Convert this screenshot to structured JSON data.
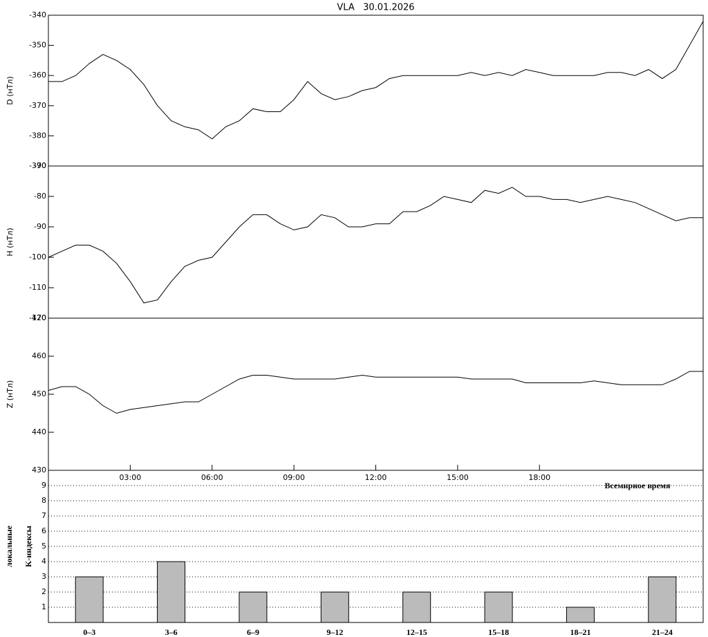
{
  "chart_data": [
    {
      "type": "line",
      "title": "VLA   30.01.2026",
      "ylabel": "D (нТл)",
      "color": "#000000",
      "x": [
        0,
        0.5,
        1,
        1.5,
        2,
        2.5,
        3,
        3.5,
        4,
        4.5,
        5,
        5.5,
        6,
        6.5,
        7,
        7.5,
        8,
        8.5,
        9,
        9.5,
        10,
        10.5,
        11,
        11.5,
        12,
        12.5,
        13,
        13.5,
        14,
        14.5,
        15,
        15.5,
        16,
        16.5,
        17,
        17.5,
        18,
        18.5,
        19,
        19.5,
        20,
        20.5,
        21,
        21.5,
        22,
        22.5,
        23,
        23.5,
        24
      ],
      "values": [
        -362,
        -362,
        -360,
        -356,
        -353,
        -355,
        -358,
        -363,
        -370,
        -375,
        -377,
        -378,
        -381,
        -377,
        -375,
        -371,
        -372,
        -372,
        -368,
        -362,
        -366,
        -368,
        -367,
        -365,
        -364,
        -361,
        -360,
        -360,
        -360,
        -360,
        -360,
        -359,
        -360,
        -359,
        -360,
        -358,
        -359,
        -360,
        -360,
        -360,
        -360,
        -359,
        -359,
        -360,
        -358,
        -361,
        -358,
        -350,
        -342
      ],
      "xlim": [
        0,
        24
      ],
      "ylim": [
        -390,
        -340
      ],
      "yticks": [
        -390,
        -380,
        -370,
        -360,
        -350,
        -340
      ]
    },
    {
      "type": "line",
      "ylabel": "H (нТл)",
      "color": "#000000",
      "x": [
        0,
        0.5,
        1,
        1.5,
        2,
        2.5,
        3,
        3.5,
        4,
        4.5,
        5,
        5.5,
        6,
        6.5,
        7,
        7.5,
        8,
        8.5,
        9,
        9.5,
        10,
        10.5,
        11,
        11.5,
        12,
        12.5,
        13,
        13.5,
        14,
        14.5,
        15,
        15.5,
        16,
        16.5,
        17,
        17.5,
        18,
        18.5,
        19,
        19.5,
        20,
        20.5,
        21,
        21.5,
        22,
        22.5,
        23,
        23.5,
        24
      ],
      "values": [
        -100,
        -98,
        -96,
        -96,
        -98,
        -102,
        -108,
        -115,
        -114,
        -108,
        -103,
        -101,
        -100,
        -95,
        -90,
        -86,
        -86,
        -89,
        -91,
        -90,
        -86,
        -87,
        -90,
        -90,
        -89,
        -89,
        -85,
        -85,
        -83,
        -80,
        -81,
        -82,
        -78,
        -79,
        -77,
        -80,
        -80,
        -81,
        -81,
        -82,
        -81,
        -80,
        -81,
        -82,
        -84,
        -86,
        -88,
        -87,
        -87
      ],
      "xlim": [
        0,
        24
      ],
      "ylim": [
        -120,
        -70
      ],
      "yticks": [
        -120,
        -110,
        -100,
        -90,
        -80,
        -70
      ]
    },
    {
      "type": "line",
      "ylabel": "Z (нТл)",
      "xlabel": "Всемирное время",
      "color": "#000000",
      "x": [
        0,
        0.5,
        1,
        1.5,
        2,
        2.5,
        3,
        3.5,
        4,
        4.5,
        5,
        5.5,
        6,
        6.5,
        7,
        7.5,
        8,
        8.5,
        9,
        9.5,
        10,
        10.5,
        11,
        11.5,
        12,
        12.5,
        13,
        13.5,
        14,
        14.5,
        15,
        15.5,
        16,
        16.5,
        17,
        17.5,
        18,
        18.5,
        19,
        19.5,
        20,
        20.5,
        21,
        21.5,
        22,
        22.5,
        23,
        23.5,
        24
      ],
      "values": [
        451,
        452,
        452,
        450,
        447,
        445,
        446,
        446.5,
        447,
        447.5,
        448,
        448,
        450,
        452,
        454,
        455,
        455,
        454.5,
        454,
        454,
        454,
        454,
        454.5,
        455,
        454.5,
        454.5,
        454.5,
        454.5,
        454.5,
        454.5,
        454.5,
        454,
        454,
        454,
        454,
        453,
        453,
        453,
        453,
        453,
        453.5,
        453,
        452.5,
        452.5,
        452.5,
        452.5,
        454,
        456,
        456
      ],
      "xlim": [
        0,
        24
      ],
      "ylim": [
        430,
        470
      ],
      "yticks": [
        430,
        440,
        450,
        460,
        470
      ],
      "xticks": [
        {
          "value": 3,
          "label": "03:00"
        },
        {
          "value": 6,
          "label": "06:00"
        },
        {
          "value": 9,
          "label": "09:00"
        },
        {
          "value": 12,
          "label": "12:00"
        },
        {
          "value": 15,
          "label": "15:00"
        },
        {
          "value": 18,
          "label": "18:00"
        }
      ]
    },
    {
      "type": "bar",
      "ylabel_lines": [
        "локальные",
        "K-индексы"
      ],
      "color": "#bbbbbb",
      "categories": [
        "0–3",
        "3–6",
        "6–9",
        "9–12",
        "12–15",
        "15–18",
        "18–21",
        "21–24"
      ],
      "values": [
        3,
        4,
        2,
        2,
        2,
        2,
        1,
        3
      ],
      "ylim": [
        0,
        10
      ],
      "yticks": [
        1,
        2,
        3,
        4,
        5,
        6,
        7,
        8,
        9
      ],
      "grid": true
    }
  ]
}
